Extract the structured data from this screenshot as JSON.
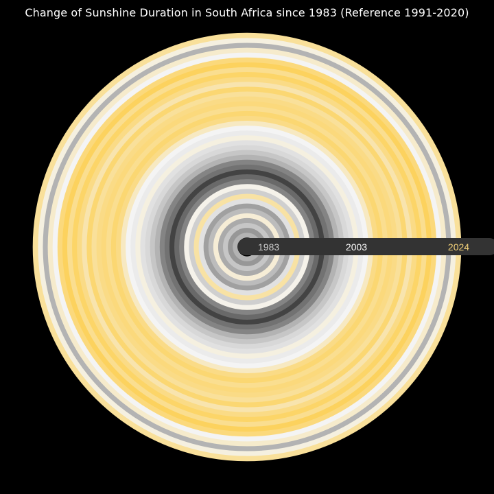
{
  "chart_data": {
    "type": "radial-stripes",
    "title": "Change of Sunshine Duration in South Africa since 1983 (Reference 1991-2020)",
    "reference_period": "1991-2020",
    "years": [
      1983,
      1984,
      1985,
      1986,
      1987,
      1988,
      1989,
      1990,
      1991,
      1992,
      1993,
      1994,
      1995,
      1996,
      1997,
      1998,
      1999,
      2000,
      2001,
      2002,
      2003,
      2004,
      2005,
      2006,
      2007,
      2008,
      2009,
      2010,
      2011,
      2012,
      2013,
      2014,
      2015,
      2016,
      2017,
      2018,
      2019,
      2020,
      2021,
      2022,
      2023,
      2024
    ],
    "anomaly_index": [
      -0.35,
      -0.5,
      -0.25,
      -0.4,
      0.15,
      -0.3,
      -0.45,
      -0.1,
      0.4,
      -0.2,
      0.05,
      -0.6,
      -0.75,
      -0.95,
      -0.7,
      -0.6,
      -0.35,
      -0.25,
      -0.15,
      -0.1,
      0.1,
      -0.05,
      0.0,
      0.25,
      0.55,
      0.65,
      0.5,
      0.6,
      0.55,
      0.45,
      0.65,
      0.35,
      0.55,
      0.7,
      0.5,
      0.75,
      0.6,
      0.0,
      0.2,
      -0.35,
      0.1,
      0.45
    ],
    "scale": {
      "negative_color": "#3a3a3a",
      "neutral_color": "#f4f4f4",
      "positive_color": "#ffc72c"
    },
    "axis_labels": [
      {
        "year": 1983,
        "text": "1983",
        "color": "#cfcfcf"
      },
      {
        "year": 2003,
        "text": "2003",
        "color": "#ffffff"
      },
      {
        "year": 2024,
        "text": "2024",
        "color": "#f5d37a"
      }
    ]
  }
}
